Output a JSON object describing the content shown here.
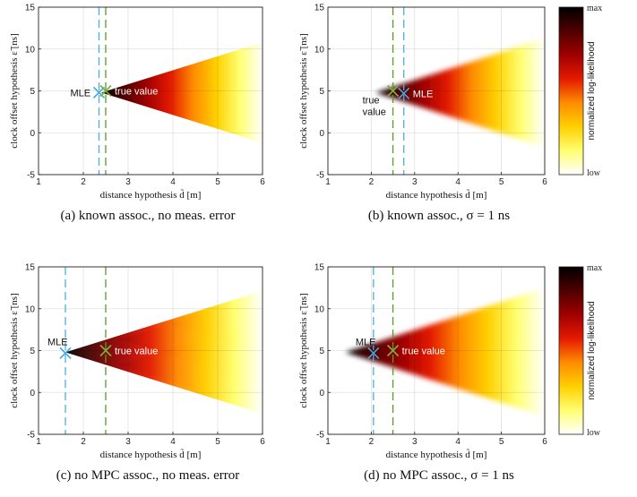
{
  "colormap": {
    "stops": [
      "#ffffff",
      "#ffff70",
      "#ffd000",
      "#ff8c00",
      "#e41a00",
      "#a00000",
      "#500000",
      "#000000"
    ],
    "line_true": "#5a9a2a",
    "line_mle": "#4ab0d8",
    "marker_true": "#7ab040",
    "marker_mle": "#40a8e0"
  },
  "colorbar": {
    "max_label": "max",
    "min_label": "low",
    "title": "normalized log-likelihood"
  },
  "chart_data": [
    {
      "type": "heatmap",
      "caption": "(a) known assoc., no meas. error",
      "xlabel": "distance hypothesis d̃ [m]",
      "ylabel": "clock offset hypothesis ε̃ [ns]",
      "xlim": [
        1,
        6
      ],
      "ylim": [
        -5,
        15
      ],
      "xticks": [
        "1",
        "2",
        "3",
        "4",
        "5",
        "6"
      ],
      "yticks": [
        "-5",
        "0",
        "5",
        "10",
        "15"
      ],
      "grid": true,
      "shape": "sharp-cone",
      "apex": {
        "x": 2.4,
        "y": 4.8
      },
      "cone_slope": 0.6,
      "true_value": {
        "x": 2.5,
        "y": 5.0,
        "label": "true value"
      },
      "mle": {
        "x": 2.35,
        "y": 4.8,
        "label": "MLE"
      },
      "vlines": [
        {
          "x": 2.35,
          "kind": "mle"
        },
        {
          "x": 2.5,
          "kind": "true"
        }
      ]
    },
    {
      "type": "heatmap",
      "caption": "(b) known assoc., σ = 1 ns",
      "xlabel": "distance hypothesis d̃ [m]",
      "ylabel": "clock offset hypothesis ε̃ [ns]",
      "xlim": [
        1,
        6
      ],
      "ylim": [
        -5,
        15
      ],
      "xticks": [
        "1",
        "2",
        "3",
        "4",
        "5",
        "6"
      ],
      "yticks": [
        "-5",
        "0",
        "5",
        "10",
        "15"
      ],
      "grid": true,
      "shape": "smooth-cone",
      "apex": {
        "x": 2.1,
        "y": 4.8
      },
      "cone_slope": 0.6,
      "true_value": {
        "x": 2.5,
        "y": 5.0,
        "label": "true\nvalue"
      },
      "mle": {
        "x": 2.75,
        "y": 4.7,
        "label": "MLE"
      },
      "vlines": [
        {
          "x": 2.5,
          "kind": "true"
        },
        {
          "x": 2.75,
          "kind": "mle"
        }
      ],
      "colorbar": true
    },
    {
      "type": "heatmap",
      "caption": "(c) no MPC assoc., no meas. error",
      "xlabel": "distance hypothesis d̃ [m]",
      "ylabel": "clock offset hypothesis ε̃ [ns]",
      "xlim": [
        1,
        6
      ],
      "ylim": [
        -5,
        15
      ],
      "xticks": [
        "1",
        "2",
        "3",
        "4",
        "5",
        "6"
      ],
      "yticks": [
        "-5",
        "0",
        "5",
        "10",
        "15"
      ],
      "grid": true,
      "shape": "multi-cone",
      "apex": {
        "x": 1.6,
        "y": 4.8
      },
      "cone_slope": 0.6,
      "true_value": {
        "x": 2.5,
        "y": 5.0,
        "label": "true value"
      },
      "mle": {
        "x": 1.6,
        "y": 4.7,
        "label": "MLE"
      },
      "vlines": [
        {
          "x": 1.6,
          "kind": "mle"
        },
        {
          "x": 2.5,
          "kind": "true"
        }
      ]
    },
    {
      "type": "heatmap",
      "caption": "(d) no MPC assoc., σ = 1 ns",
      "xlabel": "distance hypothesis d̃ [m]",
      "ylabel": "clock offset hypothesis ε̃ [ns]",
      "xlim": [
        1,
        6
      ],
      "ylim": [
        -5,
        15
      ],
      "xticks": [
        "1",
        "2",
        "3",
        "4",
        "5",
        "6"
      ],
      "yticks": [
        "-5",
        "0",
        "5",
        "10",
        "15"
      ],
      "grid": true,
      "shape": "smooth-cone",
      "apex": {
        "x": 1.4,
        "y": 4.8
      },
      "cone_slope": 0.6,
      "true_value": {
        "x": 2.5,
        "y": 5.0,
        "label": "true value"
      },
      "mle": {
        "x": 2.05,
        "y": 4.7,
        "label": "MLE"
      },
      "vlines": [
        {
          "x": 2.05,
          "kind": "mle"
        },
        {
          "x": 2.5,
          "kind": "true"
        }
      ],
      "colorbar": true
    }
  ]
}
